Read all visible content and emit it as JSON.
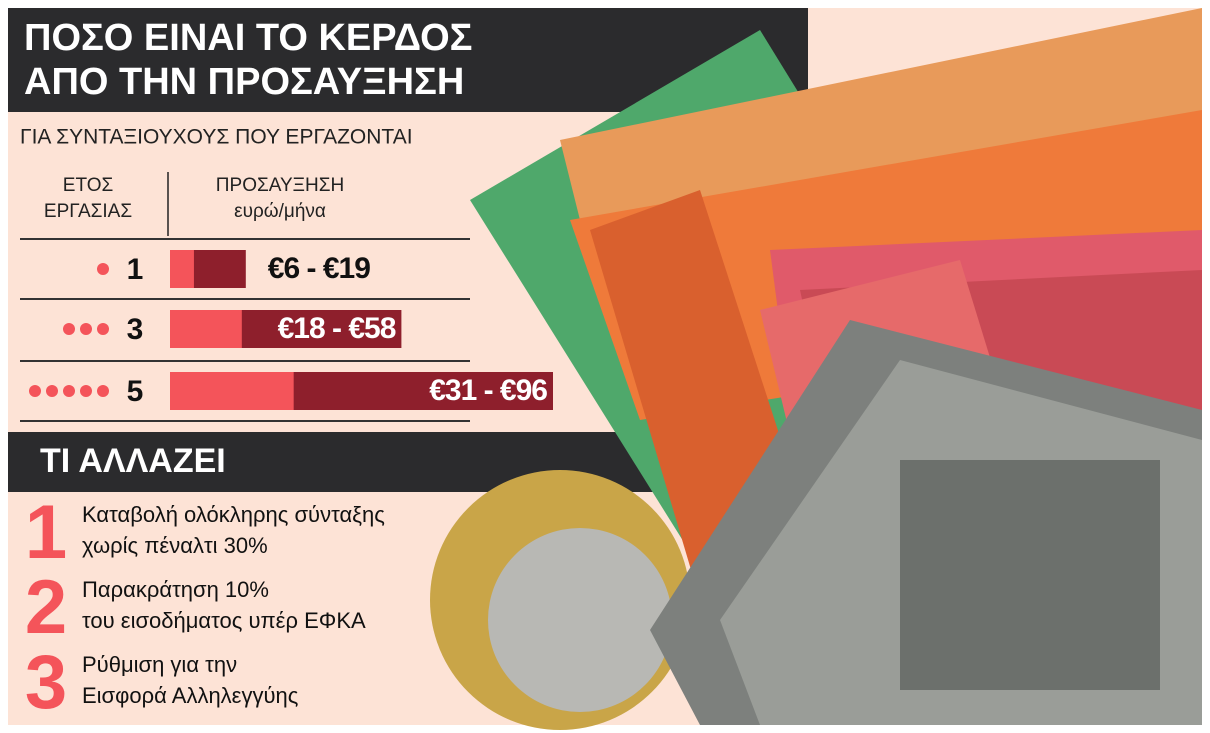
{
  "header": {
    "title_lines": [
      "ΠΟΣΟ ΕΙΝΑΙ ΤΟ ΚΕΡΔΟΣ",
      "ΑΠΟ ΤΗΝ ΠΡΟΣΑΥΞΗΣΗ"
    ],
    "subtitle": "ΓΙΑ ΣΥΝΤΑΞΙΟΥΧΟΥΣ ΠΟΥ ΕΡΓΑΖΟΝΤΑΙ"
  },
  "table": {
    "col1_lines": [
      "ΕΤΟΣ",
      "ΕΡΓΑΣΙΑΣ"
    ],
    "col2_lines": [
      "ΠΡΟΣΑΥΞΗΣΗ",
      "ευρώ/μήνα"
    ]
  },
  "chart_data": {
    "type": "bar",
    "orientation": "horizontal",
    "categories": [
      "1",
      "3",
      "5"
    ],
    "series": [
      {
        "color": "#f4545a",
        "values": [
          6,
          18,
          31
        ]
      },
      {
        "color": "#8e1f2c",
        "values": [
          19,
          58,
          96
        ],
        "value_labels": [
          "€6 - €19",
          "€18 - €58",
          "€31 - €96"
        ]
      }
    ]
  },
  "changes": {
    "title": "ΤΙ ΑΛΛΑΖΕΙ",
    "items": [
      {
        "number": "1",
        "lines": [
          "Καταβολή ολόκληρης σύνταξης",
          "χωρίς πέναλτι 30%"
        ]
      },
      {
        "number": "2",
        "lines": [
          "Παρακράτηση 10%",
          "του εισοδήματος υπέρ ΕΦΚΑ"
        ]
      },
      {
        "number": "3",
        "lines": [
          "Ρύθμιση για την",
          "Εισφορά Αλληλεγγύης"
        ]
      }
    ]
  }
}
